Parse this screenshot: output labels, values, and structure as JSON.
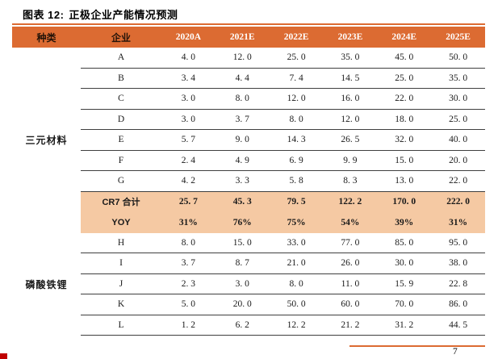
{
  "figure": {
    "label": "图表 12:",
    "title": "正极企业产能情况预测"
  },
  "colors": {
    "header_bg": "#DC6B32",
    "header_text": "#FFFFFF",
    "highlight_bg": "#F5C9A3",
    "accent_line": "#DC6B32",
    "logo_red": "#C00000"
  },
  "table": {
    "columns": [
      "种类",
      "企业",
      "2020A",
      "2021E",
      "2022E",
      "2023E",
      "2024E",
      "2025E"
    ],
    "groups": [
      {
        "category": "三元材料",
        "rows": [
          {
            "company": "A",
            "highlight": false,
            "values": [
              "4. 0",
              "12. 0",
              "25. 0",
              "35. 0",
              "45. 0",
              "50. 0"
            ]
          },
          {
            "company": "B",
            "highlight": false,
            "values": [
              "3. 4",
              "4. 4",
              "7. 4",
              "14. 5",
              "25. 0",
              "35. 0"
            ]
          },
          {
            "company": "C",
            "highlight": false,
            "values": [
              "3. 0",
              "8. 0",
              "12. 0",
              "16. 0",
              "22. 0",
              "30. 0"
            ]
          },
          {
            "company": "D",
            "highlight": false,
            "values": [
              "3. 0",
              "3. 7",
              "8. 0",
              "12. 0",
              "18. 0",
              "25. 0"
            ]
          },
          {
            "company": "E",
            "highlight": false,
            "values": [
              "5. 7",
              "9. 0",
              "14. 3",
              "26. 5",
              "32. 0",
              "40. 0"
            ]
          },
          {
            "company": "F",
            "highlight": false,
            "values": [
              "2. 4",
              "4. 9",
              "6. 9",
              "9. 9",
              "15. 0",
              "20. 0"
            ]
          },
          {
            "company": "G",
            "highlight": false,
            "values": [
              "4. 2",
              "3. 3",
              "5. 8",
              "8. 3",
              "13. 0",
              "22. 0"
            ]
          },
          {
            "company": "CR7 合计",
            "highlight": true,
            "values": [
              "25. 7",
              "45. 3",
              "79. 5",
              "122. 2",
              "170. 0",
              "222. 0"
            ]
          },
          {
            "company": "YOY",
            "highlight": true,
            "values": [
              "31%",
              "76%",
              "75%",
              "54%",
              "39%",
              "31%"
            ]
          }
        ]
      },
      {
        "category": "磷酸铁锂",
        "rows": [
          {
            "company": "H",
            "highlight": false,
            "values": [
              "8. 0",
              "15. 0",
              "33. 0",
              "77. 0",
              "85. 0",
              "95. 0"
            ]
          },
          {
            "company": "I",
            "highlight": false,
            "values": [
              "3. 7",
              "8. 7",
              "21. 0",
              "26. 0",
              "30. 0",
              "38. 0"
            ]
          },
          {
            "company": "J",
            "highlight": false,
            "values": [
              "2. 3",
              "3. 0",
              "8. 0",
              "11. 0",
              "15. 9",
              "22. 8"
            ]
          },
          {
            "company": "K",
            "highlight": false,
            "values": [
              "5. 0",
              "20. 0",
              "50. 0",
              "60. 0",
              "70. 0",
              "86. 0"
            ]
          },
          {
            "company": "L",
            "highlight": false,
            "values": [
              "1. 2",
              "6. 2",
              "12. 2",
              "21. 2",
              "31. 2",
              "44. 5"
            ]
          }
        ]
      }
    ]
  },
  "footer": {
    "page_number": "7"
  }
}
